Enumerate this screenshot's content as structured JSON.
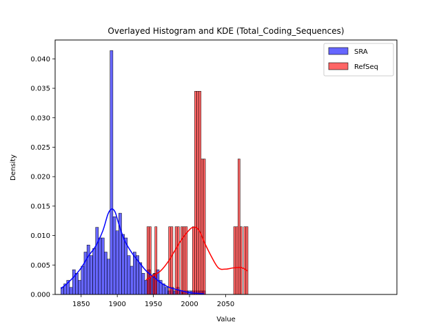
{
  "chart_data": {
    "type": "bar",
    "title": "Overlayed Histogram and KDE (Total_Coding_Sequences)",
    "xlabel": "Value",
    "ylabel": "Density",
    "xlim": [
      1814,
      2287
    ],
    "ylim": [
      0,
      0.0432
    ],
    "xticks": [
      1850,
      1900,
      1950,
      2000,
      2050
    ],
    "yticks": [
      0.0,
      0.005,
      0.01,
      0.015,
      0.02,
      0.025,
      0.03,
      0.035,
      0.04
    ],
    "ytick_labels": [
      "0.000",
      "0.005",
      "0.010",
      "0.015",
      "0.020",
      "0.025",
      "0.030",
      "0.035",
      "0.040"
    ],
    "legend_position": "top-right",
    "legend": [
      {
        "label": "SRA",
        "color": "#0000ff"
      },
      {
        "label": "RefSeq",
        "color": "#ff0000"
      }
    ],
    "series": [
      {
        "name": "SRA",
        "color": "#0000ff",
        "bin_start": 1822,
        "bin_width": 4,
        "values": [
          0.0012,
          0.0018,
          0.0024,
          0.0012,
          0.0042,
          0.0036,
          0.0024,
          0.0048,
          0.0072,
          0.0084,
          0.0066,
          0.0078,
          0.0114,
          0.0096,
          0.0096,
          0.0072,
          0.006,
          0.0414,
          0.0132,
          0.0108,
          0.0138,
          0.0102,
          0.0096,
          0.0066,
          0.0048,
          0.0072,
          0.0066,
          0.0054,
          0.0036,
          0.0024,
          0.0042,
          0.003,
          0.0036,
          0.0042,
          0.0024,
          0.0018,
          0.0012,
          0.0006,
          0.0012,
          0.0006,
          0.0012,
          0.0006,
          0.0006,
          0.0006,
          0.0006,
          0.0006,
          0.0006,
          0.0006,
          0.0006,
          0.0006
        ],
        "kde": [
          [
            1822,
            0.001
          ],
          [
            1830,
            0.0018
          ],
          [
            1840,
            0.003
          ],
          [
            1850,
            0.0045
          ],
          [
            1860,
            0.0065
          ],
          [
            1870,
            0.0082
          ],
          [
            1880,
            0.0108
          ],
          [
            1887,
            0.0136
          ],
          [
            1892,
            0.0145
          ],
          [
            1897,
            0.014
          ],
          [
            1902,
            0.012
          ],
          [
            1910,
            0.0092
          ],
          [
            1920,
            0.0071
          ],
          [
            1930,
            0.0055
          ],
          [
            1940,
            0.004
          ],
          [
            1950,
            0.003
          ],
          [
            1960,
            0.002
          ],
          [
            1970,
            0.0013
          ],
          [
            1980,
            0.0009
          ],
          [
            1990,
            0.0006
          ],
          [
            2000,
            0.0003
          ],
          [
            2010,
            0.0002
          ],
          [
            2020,
            0.0001
          ]
        ]
      },
      {
        "name": "RefSeq",
        "color": "#ff0000",
        "bars": [
          {
            "x0": 1941,
            "x1": 1944,
            "value": 0.0115
          },
          {
            "x0": 1944,
            "x1": 1947,
            "value": 0.0115
          },
          {
            "x0": 1949,
            "x1": 1952,
            "value": 0.0035
          },
          {
            "x0": 1952,
            "x1": 1955,
            "value": 0.0115
          },
          {
            "x0": 1971,
            "x1": 1974,
            "value": 0.0115
          },
          {
            "x0": 1974,
            "x1": 1977,
            "value": 0.0115
          },
          {
            "x0": 1980,
            "x1": 1983,
            "value": 0.0115
          },
          {
            "x0": 1983,
            "x1": 1986,
            "value": 0.0115
          },
          {
            "x0": 1988,
            "x1": 1991,
            "value": 0.0115
          },
          {
            "x0": 1991,
            "x1": 1994,
            "value": 0.0115
          },
          {
            "x0": 1994,
            "x1": 1997,
            "value": 0.0115
          },
          {
            "x0": 2004,
            "x1": 2007,
            "value": 0.0115
          },
          {
            "x0": 2007,
            "x1": 2010,
            "value": 0.0345
          },
          {
            "x0": 2010,
            "x1": 2013,
            "value": 0.0345
          },
          {
            "x0": 2013,
            "x1": 2016,
            "value": 0.0345
          },
          {
            "x0": 2016,
            "x1": 2019,
            "value": 0.023
          },
          {
            "x0": 2019,
            "x1": 2022,
            "value": 0.023
          },
          {
            "x0": 2061,
            "x1": 2064,
            "value": 0.0115
          },
          {
            "x0": 2064,
            "x1": 2067,
            "value": 0.0115
          },
          {
            "x0": 2067,
            "x1": 2070,
            "value": 0.023
          },
          {
            "x0": 2070,
            "x1": 2073,
            "value": 0.0115
          },
          {
            "x0": 2075,
            "x1": 2078,
            "value": 0.0115
          },
          {
            "x0": 2078,
            "x1": 2081,
            "value": 0.0115
          }
        ],
        "kde": [
          [
            1940,
            0.0025
          ],
          [
            1950,
            0.0032
          ],
          [
            1960,
            0.004
          ],
          [
            1970,
            0.0055
          ],
          [
            1980,
            0.0075
          ],
          [
            1990,
            0.0095
          ],
          [
            2000,
            0.011
          ],
          [
            2005,
            0.0114
          ],
          [
            2010,
            0.0113
          ],
          [
            2015,
            0.0105
          ],
          [
            2020,
            0.009
          ],
          [
            2030,
            0.0065
          ],
          [
            2040,
            0.0045
          ],
          [
            2050,
            0.0043
          ],
          [
            2060,
            0.0045
          ],
          [
            2070,
            0.0046
          ],
          [
            2075,
            0.0044
          ],
          [
            2080,
            0.004
          ]
        ]
      }
    ]
  }
}
